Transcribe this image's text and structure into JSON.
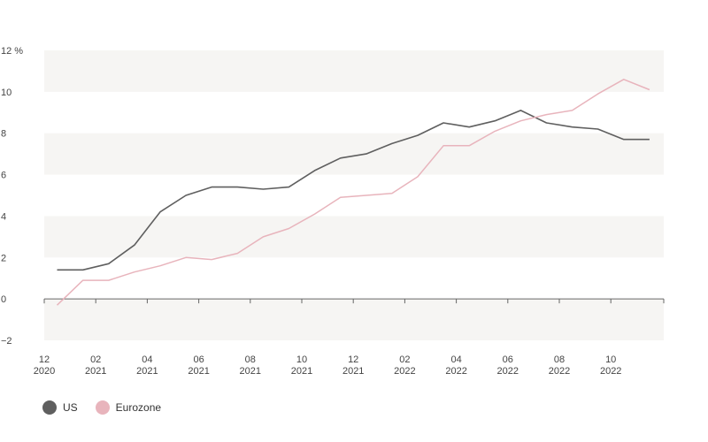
{
  "chart_data": {
    "type": "line",
    "y_unit": "%",
    "ylim": [
      -2,
      12
    ],
    "y_ticks": [
      -2,
      0,
      2,
      4,
      6,
      8,
      10,
      12
    ],
    "y_tick_labels": [
      "−2",
      "0",
      "2",
      "4",
      "6",
      "8",
      "10",
      "12 %"
    ],
    "x_ticks": [
      {
        "month": "12",
        "year": "2020"
      },
      {
        "month": "02",
        "year": "2021"
      },
      {
        "month": "04",
        "year": "2021"
      },
      {
        "month": "06",
        "year": "2021"
      },
      {
        "month": "08",
        "year": "2021"
      },
      {
        "month": "10",
        "year": "2021"
      },
      {
        "month": "12",
        "year": "2021"
      },
      {
        "month": "02",
        "year": "2022"
      },
      {
        "month": "04",
        "year": "2022"
      },
      {
        "month": "06",
        "year": "2022"
      },
      {
        "month": "08",
        "year": "2022"
      },
      {
        "month": "10",
        "year": "2022"
      }
    ],
    "x": [
      "2020-12",
      "2021-01",
      "2021-02",
      "2021-03",
      "2021-04",
      "2021-05",
      "2021-06",
      "2021-07",
      "2021-08",
      "2021-09",
      "2021-10",
      "2021-11",
      "2021-12",
      "2022-01",
      "2022-02",
      "2022-03",
      "2022-04",
      "2022-05",
      "2022-06",
      "2022-07",
      "2022-08",
      "2022-09",
      "2022-10",
      "2022-11"
    ],
    "series": [
      {
        "name": "US",
        "color": "#5f5f5f",
        "values": [
          1.4,
          1.4,
          1.7,
          2.6,
          4.2,
          5.0,
          5.4,
          5.4,
          5.3,
          5.4,
          6.2,
          6.8,
          7.0,
          7.5,
          7.9,
          8.5,
          8.3,
          8.6,
          9.1,
          8.5,
          8.3,
          8.2,
          7.7,
          7.7
        ]
      },
      {
        "name": "Eurozone",
        "color": "#e8b4bc",
        "values": [
          -0.3,
          0.9,
          0.9,
          1.3,
          1.6,
          2.0,
          1.9,
          2.2,
          3.0,
          3.4,
          4.1,
          4.9,
          5.0,
          5.1,
          5.9,
          7.4,
          7.4,
          8.1,
          8.6,
          8.9,
          9.1,
          9.9,
          10.6,
          10.1
        ]
      }
    ],
    "grid_bands": true,
    "legend_position": "bottom-left"
  }
}
